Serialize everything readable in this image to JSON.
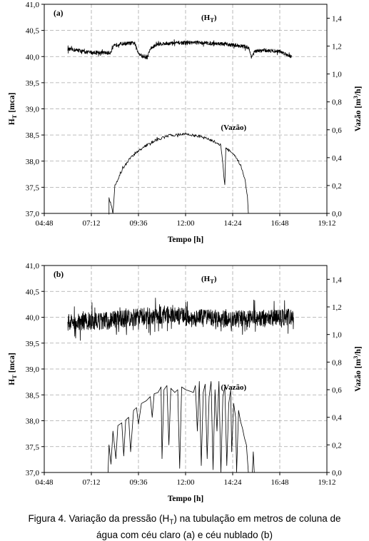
{
  "caption": {
    "prefix": "Figura 4. Variação da pressão (H",
    "sub": "T",
    "suffix": ") na tubulação em metros de coluna de",
    "line2": "água com céu claro (a) e céu nublado (b)"
  },
  "chart_data": [
    {
      "type": "line",
      "panel_label": "(a)",
      "xlabel": "Tempo [h]",
      "ylabel_left": {
        "main": "H",
        "sub": "T",
        "rest": " [mca]"
      },
      "ylabel_right": {
        "main": "Vazão [m",
        "sup": "3",
        "rest": "/h]"
      },
      "x_tick_labels": [
        "04:48",
        "07:12",
        "09:36",
        "12:00",
        "14:24",
        "16:48",
        "19:12"
      ],
      "xlim_hours": [
        4.8,
        19.2
      ],
      "left_ticks": [
        "37,0",
        "37,5",
        "38,0",
        "38,5",
        "39,0",
        "39,5",
        "40,0",
        "40,5",
        "41,0"
      ],
      "ylim_left": [
        37.0,
        41.0
      ],
      "right_ticks": [
        "0,0",
        "0,2",
        "0,4",
        "0,6",
        "0,8",
        "1,0",
        "1,2",
        "1,4"
      ],
      "ylim_right": [
        0.0,
        1.5
      ],
      "grid": true,
      "series": [
        {
          "name": "(H",
          "name_sub": "T",
          "name_end": ")",
          "axis": "left",
          "noise": 0.035,
          "label_pos": [
            12.8,
            40.7
          ],
          "points": [
            [
              6.0,
              40.14
            ],
            [
              6.5,
              40.12
            ],
            [
              7.0,
              40.08
            ],
            [
              7.5,
              40.08
            ],
            [
              8.0,
              40.07
            ],
            [
              8.15,
              40.07
            ],
            [
              8.35,
              40.2
            ],
            [
              8.6,
              40.24
            ],
            [
              9.0,
              40.25
            ],
            [
              9.4,
              40.26
            ],
            [
              9.55,
              40.1
            ],
            [
              9.8,
              40.0
            ],
            [
              10.05,
              39.98
            ],
            [
              10.2,
              40.15
            ],
            [
              10.6,
              40.24
            ],
            [
              11.5,
              40.26
            ],
            [
              12.5,
              40.27
            ],
            [
              13.5,
              40.25
            ],
            [
              14.5,
              40.22
            ],
            [
              15.2,
              40.18
            ],
            [
              15.35,
              40.0
            ],
            [
              15.55,
              40.1
            ],
            [
              16.0,
              40.12
            ],
            [
              16.8,
              40.1
            ],
            [
              17.4,
              40.0
            ]
          ]
        },
        {
          "name": "(Vazão)",
          "axis": "right",
          "noise": 0.01,
          "label_pos": [
            13.8,
            38.6
          ],
          "points": [
            [
              8.1,
              0.0
            ],
            [
              8.1,
              0.12
            ],
            [
              8.3,
              0.0
            ],
            [
              8.4,
              0.2
            ],
            [
              8.8,
              0.32
            ],
            [
              9.2,
              0.4
            ],
            [
              9.8,
              0.47
            ],
            [
              10.4,
              0.52
            ],
            [
              11.2,
              0.56
            ],
            [
              12.0,
              0.57
            ],
            [
              12.8,
              0.55
            ],
            [
              13.4,
              0.52
            ],
            [
              13.8,
              0.49
            ],
            [
              14.0,
              0.2
            ],
            [
              14.05,
              0.47
            ],
            [
              14.4,
              0.43
            ],
            [
              14.8,
              0.35
            ],
            [
              15.0,
              0.26
            ],
            [
              15.15,
              0.13
            ],
            [
              15.2,
              0.0
            ]
          ]
        }
      ]
    },
    {
      "type": "line",
      "panel_label": "(b)",
      "xlabel": "Tempo [h]",
      "ylabel_left": {
        "main": "H",
        "sub": "T",
        "rest": " [mca]"
      },
      "ylabel_right": {
        "main": "Vazão [m",
        "sup": "3",
        "rest": "/h]"
      },
      "x_tick_labels": [
        "04:48",
        "07:12",
        "09:36",
        "12:00",
        "14:24",
        "16:48",
        "19:12"
      ],
      "xlim_hours": [
        4.8,
        19.2
      ],
      "left_ticks": [
        "37,0",
        "37,5",
        "38,0",
        "38,5",
        "39,0",
        "39,5",
        "40,0",
        "40,5",
        "41,0"
      ],
      "ylim_left": [
        37.0,
        41.0
      ],
      "right_ticks": [
        "0,0",
        "0,2",
        "0,4",
        "0,6",
        "0,8",
        "1,0",
        "1,2",
        "1,4"
      ],
      "ylim_right": [
        0.0,
        1.5
      ],
      "grid": true,
      "series": [
        {
          "name": "(H",
          "name_sub": "T",
          "name_end": ")",
          "axis": "left",
          "noise": 0.17,
          "label_pos": [
            12.8,
            40.7
          ],
          "points": [
            [
              6.0,
              39.9
            ],
            [
              7.0,
              39.92
            ],
            [
              8.0,
              39.93
            ],
            [
              9.0,
              39.98
            ],
            [
              10.0,
              40.02
            ],
            [
              11.0,
              40.05
            ],
            [
              12.0,
              40.0
            ],
            [
              13.0,
              39.98
            ],
            [
              14.0,
              39.97
            ],
            [
              15.0,
              39.96
            ],
            [
              16.0,
              39.98
            ],
            [
              17.0,
              40.0
            ],
            [
              17.5,
              40.0
            ]
          ]
        },
        {
          "name": "(Vazão)",
          "axis": "right",
          "noise": 0.0,
          "label_pos": [
            13.8,
            38.6
          ],
          "points": [
            [
              8.05,
              0.0
            ],
            [
              8.1,
              0.2
            ],
            [
              8.2,
              0.06
            ],
            [
              8.3,
              0.3
            ],
            [
              8.45,
              0.1
            ],
            [
              8.55,
              0.34
            ],
            [
              8.75,
              0.36
            ],
            [
              8.85,
              0.12
            ],
            [
              8.95,
              0.38
            ],
            [
              9.1,
              0.4
            ],
            [
              9.2,
              0.15
            ],
            [
              9.35,
              0.45
            ],
            [
              9.5,
              0.47
            ],
            [
              9.6,
              0.35
            ],
            [
              9.75,
              0.5
            ],
            [
              10.0,
              0.52
            ],
            [
              10.2,
              0.55
            ],
            [
              10.3,
              0.4
            ],
            [
              10.4,
              0.57
            ],
            [
              10.6,
              0.58
            ],
            [
              10.75,
              0.62
            ],
            [
              10.8,
              0.1
            ],
            [
              10.9,
              0.6
            ],
            [
              11.05,
              0.63
            ],
            [
              11.15,
              0.2
            ],
            [
              11.25,
              0.61
            ],
            [
              11.45,
              0.58
            ],
            [
              11.6,
              0.6
            ],
            [
              11.7,
              0.03
            ],
            [
              11.8,
              0.62
            ],
            [
              12.0,
              0.6
            ],
            [
              12.2,
              0.59
            ],
            [
              12.4,
              0.58
            ],
            [
              12.5,
              0.63
            ],
            [
              12.6,
              0.3
            ],
            [
              12.7,
              0.66
            ],
            [
              12.8,
              0.05
            ],
            [
              12.9,
              0.58
            ],
            [
              13.0,
              0.64
            ],
            [
              13.1,
              0.1
            ],
            [
              13.2,
              0.55
            ],
            [
              13.3,
              0.66
            ],
            [
              13.4,
              0.02
            ],
            [
              13.5,
              0.6
            ],
            [
              13.6,
              0.3
            ],
            [
              13.7,
              0.66
            ],
            [
              13.8,
              0.0
            ],
            [
              13.9,
              0.55
            ],
            [
              14.0,
              0.62
            ],
            [
              14.1,
              0.05
            ],
            [
              14.2,
              0.5
            ],
            [
              14.3,
              0.6
            ],
            [
              14.35,
              0.15
            ],
            [
              14.45,
              0.5
            ],
            [
              14.55,
              0.4
            ],
            [
              14.6,
              0.0
            ],
            [
              14.7,
              0.45
            ],
            [
              14.8,
              0.37
            ],
            [
              14.9,
              0.32
            ],
            [
              15.0,
              0.25
            ],
            [
              15.1,
              0.2
            ],
            [
              15.2,
              0.0
            ],
            [
              15.4,
              0.0
            ],
            [
              15.45,
              0.15
            ],
            [
              15.5,
              0.0
            ]
          ]
        }
      ]
    }
  ]
}
